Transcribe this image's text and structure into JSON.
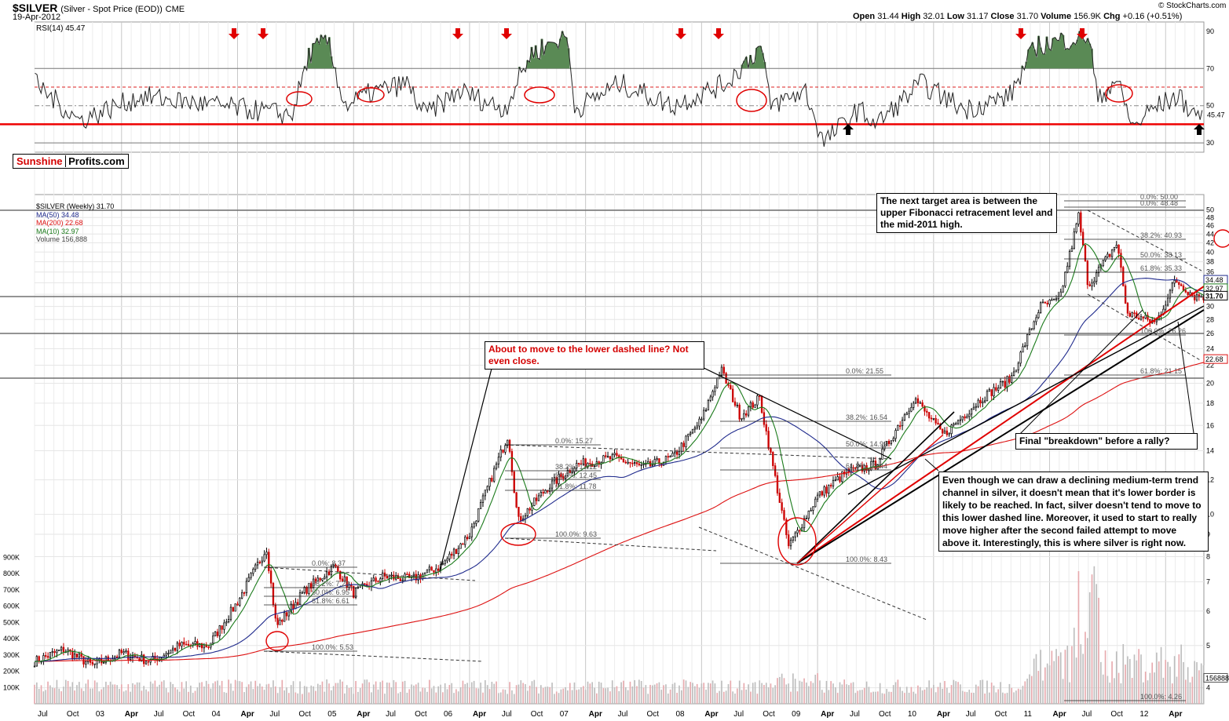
{
  "header": {
    "title": "$SILVER",
    "subtitle": "(Silver - Spot Price (EOD))",
    "exchange": "CME",
    "date": "19-Apr-2012",
    "credit": "© StockCharts.com",
    "quote": {
      "open_label": "Open",
      "open": "31.44",
      "high_label": "High",
      "high": "32.01",
      "low_label": "Low",
      "low": "31.17",
      "close_label": "Close",
      "close": "31.70",
      "volume_label": "Volume",
      "volume": "156.9K",
      "chg_label": "Chg",
      "chg": "+0.16 (+0.51%)"
    }
  },
  "brand": {
    "part1": "Sunshine",
    "part2": "Profits.com"
  },
  "legend": {
    "title": "$SILVER (Weekly) 31.70",
    "ma50": "MA(50) 34.48",
    "ma200": "MA(200) 22.68",
    "ma10": "MA(10) 32.97",
    "volume": "Volume 156,888"
  },
  "annotations": {
    "top_right": "The next target area is between the upper Fibonacci retracement level and the mid-2011 high.",
    "middle_red": "About to move to the lower dashed line? Not even close.",
    "breakdown": "Final \"breakdown\" before a rally?",
    "bottom_right": "Even though we can draw a declining medium-term trend channel in silver, it doesn't mean that it's lower border is likely to be reached. In fact, silver doesn't tend to move to this lower dashed line. Moreover, it used to start to really move higher after the second failed attempt to move above it. Interestingly, this is where silver is right now."
  },
  "colors": {
    "price_up": "#000000",
    "price_down": "#cc0000",
    "ma50": "#1f2a8c",
    "ma200": "#dd1111",
    "ma10": "#1a7a1a",
    "rsi_fill": "#5a8a55",
    "volume": "#c0c0c0"
  },
  "chart_data": [
    {
      "type": "line",
      "title": "RSI(14) 45.47",
      "series": [
        {
          "name": "RSI(14)",
          "last": 45.47
        }
      ],
      "ylim": [
        25,
        95
      ],
      "yticks": [
        30,
        50,
        70,
        90
      ],
      "reference_lines": [
        30,
        40,
        50,
        60,
        70
      ],
      "last_value_label": "45.47",
      "anchor_points": [
        [
          "2001-05",
          62
        ],
        [
          "2001-10",
          42
        ],
        [
          "2002-05",
          55
        ],
        [
          "2003-10",
          45
        ],
        [
          "2003-12",
          78
        ],
        [
          "2004-02",
          85
        ],
        [
          "2004-04",
          50
        ],
        [
          "2004-07",
          57
        ],
        [
          "2004-11",
          62
        ],
        [
          "2005-01",
          45
        ],
        [
          "2005-05",
          58
        ],
        [
          "2005-10",
          48
        ],
        [
          "2006-01",
          78
        ],
        [
          "2006-05",
          88
        ],
        [
          "2006-06",
          48
        ],
        [
          "2006-11",
          62
        ],
        [
          "2007-05",
          50
        ],
        [
          "2007-11",
          62
        ],
        [
          "2008-03",
          82
        ],
        [
          "2008-04",
          50
        ],
        [
          "2008-08",
          58
        ],
        [
          "2008-10",
          30
        ],
        [
          "2009-02",
          48
        ],
        [
          "2009-04",
          40
        ],
        [
          "2009-09",
          62
        ],
        [
          "2010-02",
          48
        ],
        [
          "2010-07",
          55
        ],
        [
          "2010-10",
          82
        ],
        [
          "2011-04",
          88
        ],
        [
          "2011-05",
          52
        ],
        [
          "2011-07",
          65
        ],
        [
          "2011-09",
          38
        ],
        [
          "2011-11",
          48
        ],
        [
          "2012-02",
          55
        ],
        [
          "2012-04",
          45.47
        ]
      ]
    },
    {
      "type": "line",
      "title": "$SILVER (Weekly) 31.70",
      "scale": "log",
      "ylim": [
        3.8,
        52
      ],
      "yticks": [
        4,
        5,
        6,
        7,
        8,
        9,
        10,
        12,
        14,
        16,
        18,
        20,
        22,
        24,
        26,
        28,
        30,
        32,
        34,
        36,
        38,
        40,
        42,
        44,
        46,
        48,
        50
      ],
      "x_labels": [
        "Jul",
        "Oct",
        "03",
        "Apr",
        "Jul",
        "Oct",
        "04",
        "Apr",
        "Jul",
        "Oct",
        "05",
        "Apr",
        "Jul",
        "Oct",
        "06",
        "Apr",
        "Jul",
        "Oct",
        "07",
        "Apr",
        "Jul",
        "Oct",
        "08",
        "Apr",
        "Jul",
        "Oct",
        "09",
        "Apr",
        "Jul",
        "Oct",
        "10",
        "Apr",
        "Jul",
        "Oct",
        "11",
        "Apr",
        "Jul",
        "Oct",
        "12",
        "Apr"
      ],
      "series": [
        {
          "name": "$SILVER",
          "points": [
            [
              "2002-04",
              4.6
            ],
            [
              "2002-07",
              4.9
            ],
            [
              "2002-10",
              4.5
            ],
            [
              "2003-01",
              4.8
            ],
            [
              "2003-04",
              4.6
            ],
            [
              "2003-07",
              5.0
            ],
            [
              "2003-10",
              5.0
            ],
            [
              "2004-01",
              6.3
            ],
            [
              "2004-04",
              8.37
            ],
            [
              "2004-05",
              5.53
            ],
            [
              "2004-08",
              6.7
            ],
            [
              "2004-11",
              7.6
            ],
            [
              "2005-01",
              6.6
            ],
            [
              "2005-04",
              7.2
            ],
            [
              "2005-07",
              7.1
            ],
            [
              "2005-10",
              7.6
            ],
            [
              "2006-01",
              9.0
            ],
            [
              "2006-05",
              15.27
            ],
            [
              "2006-06",
              9.63
            ],
            [
              "2006-09",
              11.5
            ],
            [
              "2006-12",
              13.0
            ],
            [
              "2007-04",
              13.5
            ],
            [
              "2007-07",
              12.8
            ],
            [
              "2007-10",
              13.5
            ],
            [
              "2008-01",
              16.5
            ],
            [
              "2008-03",
              21.55
            ],
            [
              "2008-05",
              16.8
            ],
            [
              "2008-07",
              18.5
            ],
            [
              "2008-10",
              8.43
            ],
            [
              "2009-01",
              11.0
            ],
            [
              "2009-04",
              12.5
            ],
            [
              "2009-07",
              13.0
            ],
            [
              "2009-11",
              18.5
            ],
            [
              "2010-02",
              15.2
            ],
            [
              "2010-06",
              18.5
            ],
            [
              "2010-09",
              20.5
            ],
            [
              "2010-12",
              30.0
            ],
            [
              "2011-02",
              31.0
            ],
            [
              "2011-04",
              48.48
            ],
            [
              "2011-05",
              33.5
            ],
            [
              "2011-08",
              42.0
            ],
            [
              "2011-09",
              29.0
            ],
            [
              "2011-12",
              27.5
            ],
            [
              "2012-02",
              34.5
            ],
            [
              "2012-04",
              31.7
            ]
          ]
        },
        {
          "name": "MA(50)",
          "last": 34.48
        },
        {
          "name": "MA(200)",
          "last": 22.68
        },
        {
          "name": "MA(10)",
          "last": 32.97
        }
      ],
      "price_labels": [
        "34.48",
        "32.97",
        "31.70",
        "22.68"
      ],
      "fibonacci": [
        {
          "levels": [
            "0.0%: 8.37",
            "38.2%: 7.29",
            "50.0%: 6.95",
            "61.8%: 6.61",
            "100.0%: 5.53"
          ]
        },
        {
          "levels": [
            "0.0%: 15.27",
            "38.2%: 13.12",
            "50.0%: 12.45",
            "61.8%: 11.78",
            "100.0%: 9.63"
          ]
        },
        {
          "levels": [
            "0.0%: 21.55",
            "38.2%: 16.54",
            "50.0%: 14.99",
            "61.8%: 13.44",
            "100.0%: 8.43"
          ]
        },
        {
          "levels": [
            "0.0%: 50.00",
            "0.0%: 48.48",
            "38.2%: 40.93",
            "50.0%: 38.13",
            "61.8%: 35.33",
            "100.0%: 26.26",
            "61.8%: 21.15",
            "100.0%: 4.26"
          ]
        }
      ]
    },
    {
      "type": "bar",
      "title": "Volume 156,888",
      "ylim": [
        0,
        950000
      ],
      "yticks": [
        "100K",
        "200K",
        "300K",
        "400K",
        "500K",
        "600K",
        "700K",
        "800K",
        "900K"
      ],
      "last_value_label": "156888"
    }
  ]
}
